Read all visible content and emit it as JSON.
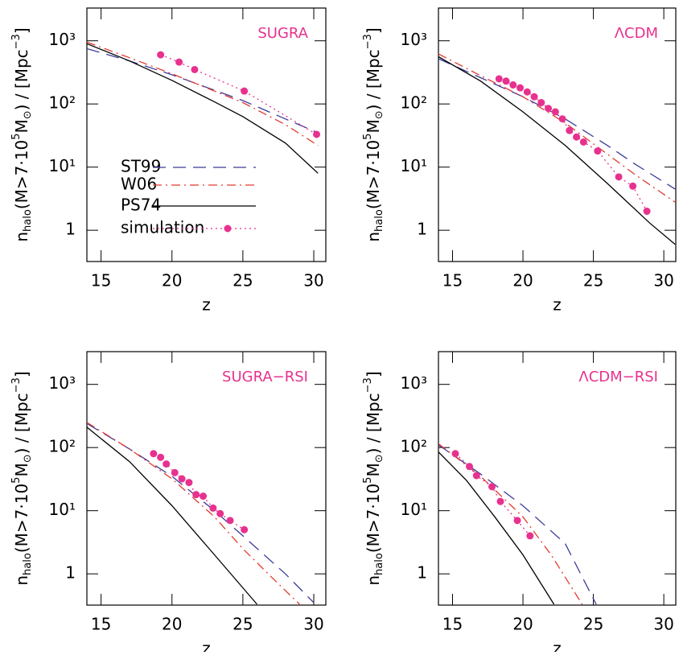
{
  "chart_data": [
    {
      "type": "line",
      "title": "SUGRA",
      "xlabel": "z",
      "ylabel": {
        "main": "n",
        "sub": "halo",
        "mid": "(M>7·10",
        "sup": "5",
        "m": "M",
        "sun": "⊙",
        "unit": ") / [Mpc",
        "usup": "−3",
        "end": "]"
      },
      "xlim": [
        14,
        30.85
      ],
      "ylim": [
        0.32,
        3300
      ],
      "log_y": true,
      "legend": true,
      "xticks": [
        15,
        20,
        25,
        30
      ],
      "yticks": [
        1,
        {
          "value": 10,
          "label": "10¹"
        },
        {
          "value": 100,
          "label": "10²"
        },
        {
          "value": 1000,
          "label": "10³"
        }
      ],
      "series": [
        {
          "name": "ST99",
          "color": "#3b3b9a",
          "style": "dashed",
          "x": [
            14,
            17,
            20,
            23,
            25,
            28,
            30.3
          ],
          "values": [
            750,
            480,
            290,
            165,
            113,
            58,
            35
          ]
        },
        {
          "name": "W06",
          "color": "#e23a2e",
          "style": "dashdot",
          "x": [
            14,
            17,
            20,
            23,
            25,
            28,
            30.3
          ],
          "values": [
            950,
            540,
            300,
            160,
            105,
            47,
            22
          ]
        },
        {
          "name": "PS74",
          "color": "#000000",
          "style": "solid",
          "x": [
            14,
            17,
            20,
            23,
            25,
            28,
            30.3
          ],
          "values": [
            900,
            480,
            236,
            108,
            63,
            24,
            8
          ]
        },
        {
          "name": "simulation",
          "color": "#e8318f",
          "style": "dotted-marker",
          "x": [
            19.2,
            20.5,
            21.6,
            25.1,
            30.2
          ],
          "values": [
            600,
            460,
            350,
            160,
            33
          ]
        }
      ]
    },
    {
      "type": "line",
      "title": "ΛCDM",
      "xlabel": "z",
      "ylabel": {
        "main": "n",
        "sub": "halo",
        "mid": "(M>7·10",
        "sup": "5",
        "m": "M",
        "sun": "⊙",
        "unit": ") / [Mpc",
        "usup": "−3",
        "end": "]"
      },
      "xlim": [
        14,
        30.85
      ],
      "ylim": [
        0.32,
        3300
      ],
      "log_y": true,
      "legend": false,
      "xticks": [
        15,
        20,
        25,
        30
      ],
      "yticks": [
        1,
        {
          "value": 10,
          "label": "10¹"
        },
        {
          "value": 100,
          "label": "10²"
        },
        {
          "value": 1000,
          "label": "10³"
        }
      ],
      "series": [
        {
          "color": "#3b3b9a",
          "style": "dashed",
          "x": [
            14,
            17,
            20,
            23,
            26,
            28,
            30.8
          ],
          "values": [
            520,
            260,
            130,
            58,
            22,
            11,
            4.5
          ]
        },
        {
          "color": "#e23a2e",
          "style": "dashdot",
          "x": [
            14,
            17,
            20,
            23,
            26,
            28,
            30.8
          ],
          "values": [
            620,
            280,
            130,
            50,
            16,
            7.5,
            2.8
          ]
        },
        {
          "color": "#000000",
          "style": "solid",
          "x": [
            14,
            17,
            20,
            23,
            26,
            29,
            30.8
          ],
          "values": [
            560,
            230,
            75,
            22,
            5.5,
            1.3,
            0.6
          ]
        },
        {
          "color": "#e8318f",
          "style": "dotted-marker",
          "x": [
            18.3,
            18.8,
            19.3,
            19.8,
            20.3,
            20.8,
            21.3,
            21.8,
            22.3,
            22.8,
            23.3,
            23.8,
            24.3,
            25.3,
            26.8,
            27.8,
            28.8
          ],
          "values": [
            250,
            230,
            200,
            180,
            155,
            130,
            105,
            85,
            75,
            58,
            38,
            30,
            25,
            18,
            7,
            5,
            2
          ]
        }
      ]
    },
    {
      "type": "line",
      "title": "SUGRA−RSI",
      "xlabel": "z",
      "ylabel": {
        "main": "n",
        "sub": "halo",
        "mid": "(M>7·10",
        "sup": "5",
        "m": "M",
        "sun": "⊙",
        "unit": ") / [Mpc",
        "usup": "−3",
        "end": "]"
      },
      "xlim": [
        14,
        30.85
      ],
      "ylim": [
        0.32,
        3300
      ],
      "log_y": true,
      "legend": false,
      "xticks": [
        15,
        20,
        25,
        30
      ],
      "yticks": [
        1,
        {
          "value": 10,
          "label": "10¹"
        },
        {
          "value": 100,
          "label": "10²"
        },
        {
          "value": 1000,
          "label": "10³"
        }
      ],
      "series": [
        {
          "color": "#3b3b9a",
          "style": "dashed",
          "x": [
            14,
            17,
            20,
            23,
            25,
            28,
            30
          ],
          "values": [
            240,
            95,
            35,
            10,
            4,
            1,
            0.35
          ]
        },
        {
          "color": "#e23a2e",
          "style": "dashdot",
          "x": [
            14,
            17,
            20,
            23,
            25,
            27,
            29
          ],
          "values": [
            250,
            95,
            32,
            8,
            2.5,
            0.9,
            0.33
          ]
        },
        {
          "color": "#000000",
          "style": "solid",
          "x": [
            14,
            17,
            20,
            23,
            26
          ],
          "values": [
            210,
            60,
            12,
            2,
            0.33
          ]
        },
        {
          "color": "#e8318f",
          "style": "dotted-marker",
          "x": [
            18.7,
            19.2,
            19.6,
            20.2,
            20.7,
            21.2,
            21.7,
            22.2,
            22.9,
            23.4,
            24.1,
            25.1
          ],
          "values": [
            80,
            70,
            55,
            40,
            32,
            28,
            18,
            17,
            11,
            9,
            7,
            5
          ]
        }
      ]
    },
    {
      "type": "line",
      "title": "ΛCDM−RSI",
      "xlabel": "z",
      "ylabel": {
        "main": "n",
        "sub": "halo",
        "mid": "(M>7·10",
        "sup": "5",
        "m": "M",
        "sun": "⊙",
        "unit": ") / [Mpc",
        "usup": "−3",
        "end": "]"
      },
      "xlim": [
        14,
        30.85
      ],
      "ylim": [
        0.32,
        3300
      ],
      "log_y": true,
      "legend": false,
      "xticks": [
        15,
        20,
        25,
        30
      ],
      "yticks": [
        1,
        {
          "value": 10,
          "label": "10¹"
        },
        {
          "value": 100,
          "label": "10²"
        },
        {
          "value": 1000,
          "label": "10³"
        }
      ],
      "series": [
        {
          "color": "#3b3b9a",
          "style": "dashed",
          "x": [
            14,
            17,
            20,
            23,
            25.2
          ],
          "values": [
            110,
            38,
            12,
            3,
            0.33
          ]
        },
        {
          "color": "#e23a2e",
          "style": "dashdot",
          "x": [
            14,
            17,
            20,
            22,
            24.2
          ],
          "values": [
            115,
            35,
            8,
            2,
            0.33
          ]
        },
        {
          "color": "#000000",
          "style": "solid",
          "x": [
            14,
            16,
            18,
            20,
            22.2
          ],
          "values": [
            85,
            30,
            8,
            2,
            0.33
          ]
        },
        {
          "color": "#e8318f",
          "style": "dotted-marker",
          "x": [
            15.2,
            16.2,
            16.7,
            17.8,
            18.4,
            19.6,
            20.5
          ],
          "values": [
            80,
            50,
            36,
            24,
            14,
            7,
            4
          ]
        }
      ]
    }
  ]
}
